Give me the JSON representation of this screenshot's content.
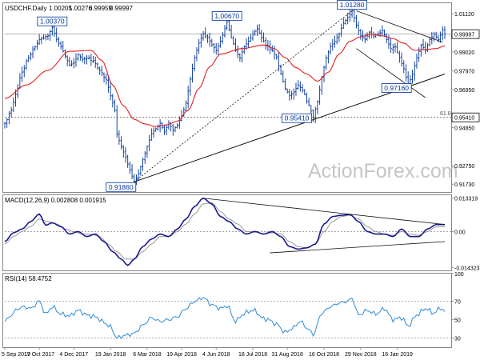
{
  "chart_data": [
    {
      "type": "candlestick",
      "header": [
        "USDCHF.Daily",
        "1.00205",
        "1.00276",
        "0.99959",
        "0.99997"
      ],
      "ylim": [
        0.913,
        1.017
      ],
      "yticks": [
        "1.01120",
        "0.99020",
        "0.97970",
        "0.96950",
        "0.94850",
        "0.92750",
        "0.91730"
      ],
      "ytick_values": [
        1.0112,
        0.9902,
        0.9797,
        0.9695,
        0.9485,
        0.9275,
        0.9173
      ],
      "last_price": "0.99997",
      "last_price_value": 0.99997,
      "fib_label": "61.8",
      "fib_price": "0.95410",
      "fib_value": 0.9541,
      "annotations": [
        {
          "text": "1.00370",
          "t": 22,
          "v": 1.0037
        },
        {
          "text": "1.00670",
          "t": 103,
          "v": 1.0067
        },
        {
          "text": "1.01280",
          "t": 161,
          "v": 1.0128
        },
        {
          "text": "0.97160",
          "t": 187,
          "v": 0.9716
        },
        {
          "text": "0.95410",
          "t": 143,
          "v": 0.9541
        },
        {
          "text": "0.91860",
          "t": 60,
          "v": 0.9186
        }
      ],
      "watermark": "ActionForex.com",
      "close_anchors": [
        [
          0,
          0.951
        ],
        [
          3,
          0.958
        ],
        [
          5,
          0.967
        ],
        [
          8,
          0.979
        ],
        [
          11,
          0.987
        ],
        [
          14,
          0.993
        ],
        [
          16,
          0.997
        ],
        [
          20,
          0.999
        ],
        [
          22,
          1.0037
        ],
        [
          24,
          0.997
        ],
        [
          26,
          0.993
        ],
        [
          28,
          0.988
        ],
        [
          30,
          0.983
        ],
        [
          32,
          0.984
        ],
        [
          34,
          0.989
        ],
        [
          36,
          0.986
        ],
        [
          38,
          0.987
        ],
        [
          41,
          0.985
        ],
        [
          44,
          0.98
        ],
        [
          47,
          0.975
        ],
        [
          49,
          0.966
        ],
        [
          51,
          0.958
        ],
        [
          52,
          0.945
        ],
        [
          54,
          0.938
        ],
        [
          56,
          0.932
        ],
        [
          58,
          0.925
        ],
        [
          60,
          0.9186
        ],
        [
          62,
          0.923
        ],
        [
          64,
          0.931
        ],
        [
          66,
          0.938
        ],
        [
          68,
          0.945
        ],
        [
          70,
          0.948
        ],
        [
          72,
          0.951
        ],
        [
          74,
          0.946
        ],
        [
          76,
          0.951
        ],
        [
          78,
          0.947
        ],
        [
          80,
          0.95
        ],
        [
          82,
          0.955
        ],
        [
          84,
          0.962
        ],
        [
          86,
          0.975
        ],
        [
          88,
          0.987
        ],
        [
          90,
          0.995
        ],
        [
          92,
          1.0
        ],
        [
          94,
          0.998
        ],
        [
          96,
          0.994
        ],
        [
          98,
          0.991
        ],
        [
          100,
          0.996
        ],
        [
          102,
          1.003
        ],
        [
          103,
          1.0067
        ],
        [
          105,
          0.998
        ],
        [
          107,
          0.991
        ],
        [
          109,
          0.987
        ],
        [
          111,
          0.993
        ],
        [
          113,
          0.996
        ],
        [
          115,
          1.0
        ],
        [
          117,
          1.003
        ],
        [
          119,
          0.998
        ],
        [
          121,
          0.994
        ],
        [
          124,
          0.991
        ],
        [
          126,
          0.987
        ],
        [
          128,
          0.978
        ],
        [
          130,
          0.97
        ],
        [
          132,
          0.966
        ],
        [
          134,
          0.968
        ],
        [
          136,
          0.972
        ],
        [
          138,
          0.969
        ],
        [
          141,
          0.961
        ],
        [
          143,
          0.9541
        ],
        [
          145,
          0.963
        ],
        [
          147,
          0.976
        ],
        [
          149,
          0.987
        ],
        [
          151,
          0.993
        ],
        [
          153,
          0.996
        ],
        [
          155,
          1.0
        ],
        [
          157,
          1.006
        ],
        [
          159,
          1.009
        ],
        [
          161,
          1.0128
        ],
        [
          163,
          1.005
        ],
        [
          165,
          0.999
        ],
        [
          167,
          0.997
        ],
        [
          169,
          1.001
        ],
        [
          171,
          0.999
        ],
        [
          173,
          1.0
        ],
        [
          175,
          1.002
        ],
        [
          177,
          0.997
        ],
        [
          179,
          0.992
        ],
        [
          181,
          0.993
        ],
        [
          183,
          0.987
        ],
        [
          185,
          0.981
        ],
        [
          187,
          0.9716
        ],
        [
          189,
          0.978
        ],
        [
          191,
          0.987
        ],
        [
          193,
          0.994
        ],
        [
          195,
          0.991
        ],
        [
          197,
          0.997
        ],
        [
          199,
          1.0
        ],
        [
          201,
          0.997
        ],
        [
          203,
          1.00205
        ],
        [
          204,
          0.99997
        ]
      ],
      "sma_anchors": [
        [
          0,
          0.9645
        ],
        [
          10,
          0.972
        ],
        [
          20,
          0.98
        ],
        [
          30,
          0.9905
        ],
        [
          40,
          0.991
        ],
        [
          45,
          0.9855
        ],
        [
          50,
          0.972
        ],
        [
          55,
          0.9605
        ],
        [
          60,
          0.953
        ],
        [
          65,
          0.9505
        ],
        [
          70,
          0.949
        ],
        [
          75,
          0.95
        ],
        [
          80,
          0.952
        ],
        [
          85,
          0.958
        ],
        [
          90,
          0.97
        ],
        [
          95,
          0.982
        ],
        [
          100,
          0.989
        ],
        [
          110,
          0.992
        ],
        [
          120,
          0.994
        ],
        [
          125,
          0.992
        ],
        [
          130,
          0.987
        ],
        [
          135,
          0.9815
        ],
        [
          140,
          0.978
        ],
        [
          145,
          0.974
        ],
        [
          150,
          0.979
        ],
        [
          155,
          0.989
        ],
        [
          160,
          0.996
        ],
        [
          165,
          0.9985
        ],
        [
          170,
          1.0
        ],
        [
          175,
          0.999
        ],
        [
          180,
          0.9975
        ],
        [
          185,
          0.995
        ],
        [
          190,
          0.991
        ],
        [
          195,
          0.9915
        ],
        [
          200,
          0.992
        ],
        [
          204,
          0.9935
        ]
      ],
      "trend_support": {
        "t1": 60,
        "v1": 0.9186,
        "t2": 204,
        "v2": 0.978
      },
      "trend_support_dotted": {
        "t1": 60,
        "v1": 0.9186,
        "t2": 161,
        "v2": 1.0128
      },
      "channel_upper": {
        "t1": 163,
        "v1": 1.0128,
        "t2": 203,
        "v2": 0.9955
      },
      "channel_lower": {
        "t1": 163,
        "v1": 0.992,
        "t2": 195,
        "v2": 0.965
      },
      "xlabels": [
        {
          "text": "5 Sep 2017",
          "t": 0
        },
        {
          "text": "19 Oct 2017",
          "t": 16
        },
        {
          "text": "4 Dec 2017",
          "t": 32
        },
        {
          "text": "19 Jan 2018",
          "t": 49
        },
        {
          "text": "6 Mar 2018",
          "t": 66
        },
        {
          "text": "19 Apr 2018",
          "t": 82
        },
        {
          "text": "4 Jun 2018",
          "t": 98
        },
        {
          "text": "18 Jul 2018",
          "t": 115
        },
        {
          "text": "31 Aug 2018",
          "t": 131
        },
        {
          "text": "16 Oct 2018",
          "t": 148
        },
        {
          "text": "29 Nov 2018",
          "t": 165
        },
        {
          "text": "16 Jan 2019",
          "t": 182
        }
      ]
    },
    {
      "type": "line",
      "title": "MACD(12,26,9) 0.002808 0.001915",
      "ylim": [
        -0.0155,
        0.0145
      ],
      "yticks": [
        "0.013319",
        "0.00",
        "-0.014323"
      ],
      "ytick_values": [
        0.013319,
        0.0,
        -0.014323
      ],
      "macd_anchors": [
        [
          0,
          -0.004
        ],
        [
          4,
          -0.0005
        ],
        [
          8,
          0.001
        ],
        [
          12,
          0.004
        ],
        [
          16,
          0.007
        ],
        [
          19,
          0.0025
        ],
        [
          22,
          0.0035
        ],
        [
          26,
          0.002
        ],
        [
          30,
          -0.001
        ],
        [
          34,
          0.0
        ],
        [
          38,
          -0.002
        ],
        [
          42,
          -0.001
        ],
        [
          46,
          -0.004
        ],
        [
          50,
          -0.008
        ],
        [
          54,
          -0.011
        ],
        [
          57,
          -0.0135
        ],
        [
          60,
          -0.011
        ],
        [
          64,
          -0.006
        ],
        [
          68,
          -0.003
        ],
        [
          72,
          -0.001
        ],
        [
          76,
          -0.002
        ],
        [
          80,
          0.001
        ],
        [
          84,
          0.005
        ],
        [
          88,
          0.01
        ],
        [
          92,
          0.0133
        ],
        [
          96,
          0.011
        ],
        [
          100,
          0.006
        ],
        [
          104,
          0.004
        ],
        [
          108,
          0.001
        ],
        [
          112,
          -0.001
        ],
        [
          116,
          0.0
        ],
        [
          120,
          -0.001
        ],
        [
          124,
          0.0
        ],
        [
          128,
          -0.002
        ],
        [
          132,
          -0.006
        ],
        [
          136,
          -0.007
        ],
        [
          140,
          -0.0065
        ],
        [
          144,
          -0.005
        ],
        [
          148,
          0.003
        ],
        [
          152,
          0.006
        ],
        [
          156,
          0.0065
        ],
        [
          160,
          0.0068
        ],
        [
          164,
          0.004
        ],
        [
          168,
          0.0
        ],
        [
          172,
          -0.001
        ],
        [
          176,
          -0.001
        ],
        [
          180,
          -0.002
        ],
        [
          184,
          0.001
        ],
        [
          188,
          -0.002
        ],
        [
          192,
          -0.002
        ],
        [
          196,
          0.001
        ],
        [
          200,
          0.0028
        ],
        [
          204,
          0.0028
        ]
      ],
      "signal_anchors": [
        [
          0,
          -0.005
        ],
        [
          4,
          -0.002
        ],
        [
          8,
          0.0
        ],
        [
          12,
          0.002
        ],
        [
          16,
          0.005
        ],
        [
          20,
          0.004
        ],
        [
          24,
          0.003
        ],
        [
          28,
          0.001
        ],
        [
          32,
          0.0
        ],
        [
          36,
          -0.001
        ],
        [
          40,
          -0.001
        ],
        [
          44,
          -0.002
        ],
        [
          48,
          -0.005
        ],
        [
          52,
          -0.008
        ],
        [
          56,
          -0.011
        ],
        [
          60,
          -0.011
        ],
        [
          64,
          -0.008
        ],
        [
          68,
          -0.005
        ],
        [
          72,
          -0.002
        ],
        [
          76,
          -0.002
        ],
        [
          80,
          0.0
        ],
        [
          84,
          0.003
        ],
        [
          88,
          0.007
        ],
        [
          92,
          0.011
        ],
        [
          96,
          0.0115
        ],
        [
          100,
          0.008
        ],
        [
          104,
          0.005
        ],
        [
          108,
          0.003
        ],
        [
          112,
          0.0
        ],
        [
          116,
          0.0
        ],
        [
          120,
          -0.001
        ],
        [
          124,
          -0.0005
        ],
        [
          128,
          -0.001
        ],
        [
          132,
          -0.004
        ],
        [
          136,
          -0.006
        ],
        [
          140,
          -0.0065
        ],
        [
          144,
          -0.005
        ],
        [
          148,
          0.0
        ],
        [
          152,
          0.004
        ],
        [
          156,
          0.006
        ],
        [
          160,
          0.0065
        ],
        [
          164,
          0.005
        ],
        [
          168,
          0.002
        ],
        [
          172,
          0.0
        ],
        [
          176,
          -0.001
        ],
        [
          180,
          -0.0015
        ],
        [
          184,
          0.0
        ],
        [
          188,
          -0.001
        ],
        [
          192,
          -0.0015
        ],
        [
          196,
          0.0
        ],
        [
          200,
          0.0019
        ],
        [
          204,
          0.0019
        ]
      ],
      "trend_upper": {
        "t1": 92,
        "v1": 0.0133,
        "t2": 204,
        "v2": 0.0028
      },
      "trend_lower": {
        "t1": 134,
        "v1": -0.0085,
        "t2": 204,
        "v2": -0.004
      }
    },
    {
      "type": "line",
      "title": "RSI(14) 58.4752",
      "ylim": [
        20,
        100
      ],
      "yticks": [
        "100",
        "70",
        "50",
        "30"
      ],
      "ytick_values": [
        100,
        70,
        50,
        30
      ],
      "rsi_anchors": [
        [
          0,
          48
        ],
        [
          3,
          55
        ],
        [
          6,
          62
        ],
        [
          9,
          64
        ],
        [
          12,
          62
        ],
        [
          16,
          70
        ],
        [
          19,
          56
        ],
        [
          22,
          64
        ],
        [
          26,
          56
        ],
        [
          30,
          54
        ],
        [
          34,
          60
        ],
        [
          38,
          55
        ],
        [
          42,
          53
        ],
        [
          46,
          47
        ],
        [
          49,
          42
        ],
        [
          52,
          30
        ],
        [
          56,
          33
        ],
        [
          60,
          35
        ],
        [
          64,
          44
        ],
        [
          68,
          52
        ],
        [
          72,
          48
        ],
        [
          76,
          50
        ],
        [
          80,
          53
        ],
        [
          84,
          62
        ],
        [
          88,
          70
        ],
        [
          92,
          74
        ],
        [
          96,
          66
        ],
        [
          100,
          62
        ],
        [
          103,
          65
        ],
        [
          107,
          48
        ],
        [
          110,
          55
        ],
        [
          113,
          59
        ],
        [
          116,
          60
        ],
        [
          119,
          52
        ],
        [
          122,
          50
        ],
        [
          126,
          45
        ],
        [
          130,
          36
        ],
        [
          133,
          40
        ],
        [
          137,
          48
        ],
        [
          141,
          39
        ],
        [
          143,
          34
        ],
        [
          147,
          57
        ],
        [
          151,
          64
        ],
        [
          155,
          68
        ],
        [
          159,
          70
        ],
        [
          161,
          73
        ],
        [
          164,
          55
        ],
        [
          168,
          60
        ],
        [
          172,
          56
        ],
        [
          176,
          62
        ],
        [
          180,
          50
        ],
        [
          184,
          52
        ],
        [
          187,
          43
        ],
        [
          191,
          55
        ],
        [
          195,
          62
        ],
        [
          199,
          57
        ],
        [
          202,
          63
        ],
        [
          204,
          58.5
        ]
      ]
    }
  ]
}
